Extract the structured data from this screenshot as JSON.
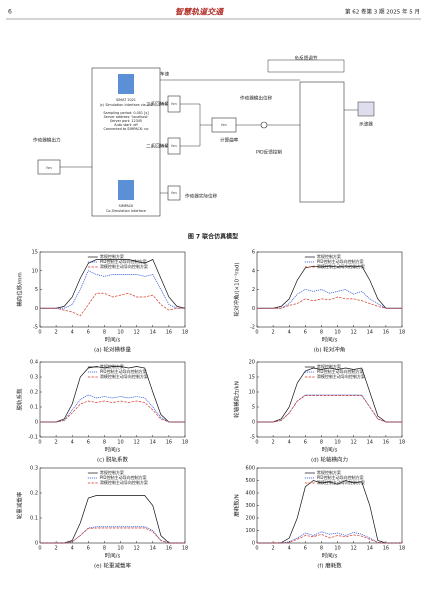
{
  "header": {
    "page_number": "6",
    "journal": "智慧轨道交通",
    "issue": "第 62 卷第 3 期 2025 年 5 月"
  },
  "diagram": {
    "block_title": "SIMAT 2021",
    "block_subtitle": "(c) Simulation Interface via IPC",
    "params": [
      "Sampling period: 0.001 [s]",
      "Server address: 'localhost'",
      "Server port: 12345",
      "Auto start: off",
      "Connected to SIMPACK: no"
    ],
    "block_footer": [
      "SIMPACK",
      "Co-Simulation Interface"
    ],
    "fcn_label": "fcn",
    "actuator_force": "作动器输出力",
    "speed": "车速",
    "yaw_angle": "二系回转角",
    "yaw_rate": "二系回转角速度",
    "actuator_disp": "作动器实际位移",
    "curvature": "计算曲率",
    "actuator_out_disp": "作动器输出位移",
    "pid": "PID反馈控制",
    "feedback": "负反馈调节",
    "scope": "示波器",
    "caption": "图 7 联合仿真模型"
  },
  "chart_data": [
    {
      "type": "line",
      "caption": "(a) 轮对横移量",
      "x_label": "时间/s",
      "y_label": "横向位移/mm",
      "legend": "top",
      "x": [
        0,
        1,
        2,
        3,
        4,
        5,
        6,
        7,
        8,
        9,
        10,
        11,
        12,
        13,
        14,
        15,
        16,
        17,
        18
      ],
      "xlim": [
        0,
        18
      ],
      "xticks": [
        0,
        2,
        4,
        6,
        8,
        10,
        12,
        14,
        16,
        18
      ],
      "ylim": [
        -5,
        15
      ],
      "yticks": [
        -5,
        0,
        5,
        10,
        15
      ],
      "series": [
        {
          "name": "常规控制方案",
          "color": "#111111",
          "values": [
            0,
            0,
            0,
            0.5,
            3,
            8,
            12,
            13,
            13,
            13,
            13,
            13,
            12.5,
            12,
            13,
            8,
            3,
            0.5,
            0
          ]
        },
        {
          "name": "PID控制主动导向控制方案",
          "color": "#2a4fd6",
          "values": [
            0,
            0,
            0,
            0,
            1,
            5,
            10,
            9,
            8.5,
            9,
            9,
            9,
            9,
            8.5,
            9,
            5,
            1,
            0,
            0
          ]
        },
        {
          "name": "滑模控制主动导向控制方案",
          "color": "#d63a2a",
          "values": [
            0,
            0,
            0,
            -0.5,
            -1,
            -2,
            1,
            4,
            4,
            3,
            3.5,
            4,
            3,
            3,
            3.5,
            1,
            -0.5,
            0,
            0
          ]
        }
      ]
    },
    {
      "type": "line",
      "caption": "(b) 轮对冲角",
      "x_label": "时间/s",
      "y_label": "轮对冲角/(×10⁻³rad)",
      "legend": "top",
      "x": [
        0,
        1,
        2,
        3,
        4,
        5,
        6,
        7,
        8,
        9,
        10,
        11,
        12,
        13,
        14,
        15,
        16,
        17,
        18
      ],
      "xlim": [
        0,
        18
      ],
      "xticks": [
        0,
        2,
        4,
        6,
        8,
        10,
        12,
        14,
        16,
        18
      ],
      "ylim": [
        -2,
        6
      ],
      "yticks": [
        -2,
        0,
        2,
        4,
        6
      ],
      "series": [
        {
          "name": "常规控制方案",
          "color": "#111111",
          "values": [
            0,
            0,
            0,
            0.2,
            1,
            3,
            4.3,
            4.5,
            4.4,
            4.5,
            4.4,
            4.5,
            4.4,
            4.5,
            3,
            1,
            0,
            0,
            0
          ]
        },
        {
          "name": "PID控制主动导向控制方案",
          "color": "#2a4fd6",
          "values": [
            0,
            0,
            0,
            0,
            0.5,
            1.5,
            2,
            1.8,
            2,
            1.6,
            1.8,
            2,
            1.5,
            1.8,
            1,
            0.5,
            0,
            0,
            0
          ]
        },
        {
          "name": "滑模控制主动导向控制方案",
          "color": "#d63a2a",
          "values": [
            0,
            0,
            0,
            0,
            0.3,
            0.5,
            1,
            0.8,
            1,
            0.9,
            1.2,
            1,
            1,
            0.8,
            0.5,
            0.2,
            0,
            0,
            0
          ]
        }
      ]
    },
    {
      "type": "line",
      "caption": "(c) 脱轨系数",
      "x_label": "时间/s",
      "y_label": "脱轨系数",
      "legend": "top",
      "x": [
        0,
        1,
        2,
        3,
        4,
        5,
        6,
        7,
        8,
        9,
        10,
        11,
        12,
        13,
        14,
        15,
        16,
        17,
        18
      ],
      "xlim": [
        0,
        18
      ],
      "xticks": [
        0,
        2,
        4,
        6,
        8,
        10,
        12,
        14,
        16,
        18
      ],
      "ylim": [
        -0.1,
        0.4
      ],
      "yticks": [
        -0.1,
        0,
        0.1,
        0.2,
        0.3,
        0.4
      ],
      "series": [
        {
          "name": "常规控制方案",
          "color": "#111111",
          "values": [
            0,
            0,
            0,
            0.02,
            0.12,
            0.3,
            0.36,
            0.37,
            0.36,
            0.37,
            0.37,
            0.36,
            0.37,
            0.36,
            0.2,
            0.05,
            0,
            0,
            0
          ]
        },
        {
          "name": "PID控制主动导向控制方案",
          "color": "#2a4fd6",
          "values": [
            0,
            0,
            0,
            0.01,
            0.08,
            0.15,
            0.18,
            0.16,
            0.17,
            0.16,
            0.17,
            0.16,
            0.17,
            0.16,
            0.1,
            0.03,
            0,
            0,
            0
          ]
        },
        {
          "name": "滑模控制主动导向控制方案",
          "color": "#d63a2a",
          "values": [
            0,
            0,
            0,
            0.01,
            0.06,
            0.12,
            0.14,
            0.13,
            0.14,
            0.13,
            0.14,
            0.13,
            0.14,
            0.13,
            0.08,
            0.02,
            0,
            0,
            0
          ]
        }
      ]
    },
    {
      "type": "line",
      "caption": "(d) 轮轴横向力",
      "x_label": "时间/s",
      "y_label": "轮轴横向力/kN",
      "legend": "top",
      "x": [
        0,
        1,
        2,
        3,
        4,
        5,
        6,
        7,
        8,
        9,
        10,
        11,
        12,
        13,
        14,
        15,
        16,
        17,
        18
      ],
      "xlim": [
        0,
        18
      ],
      "xticks": [
        0,
        2,
        4,
        6,
        8,
        10,
        12,
        14,
        16,
        18
      ],
      "ylim": [
        -5,
        20
      ],
      "yticks": [
        -5,
        0,
        5,
        10,
        15,
        20
      ],
      "series": [
        {
          "name": "常规控制方案",
          "color": "#111111",
          "values": [
            0,
            0,
            0,
            1,
            5,
            13,
            17,
            18,
            17.5,
            18,
            17.5,
            18,
            17.5,
            18,
            10,
            2,
            0,
            0,
            0
          ]
        },
        {
          "name": "PID控制主动导向控制方案",
          "color": "#2a4fd6",
          "values": [
            0,
            0,
            0,
            0.5,
            3,
            7,
            9,
            9,
            9,
            9,
            9,
            9,
            9,
            9,
            5,
            1,
            0,
            0,
            0
          ]
        },
        {
          "name": "滑模控制主动导向控制方案",
          "color": "#d63a2a",
          "values": [
            0,
            0,
            0,
            0.5,
            3,
            7,
            8.8,
            8.8,
            8.8,
            8.8,
            8.8,
            8.8,
            8.8,
            8.8,
            5,
            1,
            0,
            0,
            0
          ]
        }
      ]
    },
    {
      "type": "line",
      "caption": "(e) 轮重减载率",
      "x_label": "时间/s",
      "y_label": "轮重减载率",
      "legend": "top",
      "x": [
        0,
        1,
        2,
        3,
        4,
        5,
        6,
        7,
        8,
        9,
        10,
        11,
        12,
        13,
        14,
        15,
        16,
        17,
        18
      ],
      "xlim": [
        0,
        18
      ],
      "xticks": [
        0,
        2,
        4,
        6,
        8,
        10,
        12,
        14,
        16,
        18
      ],
      "ylim": [
        0,
        0.3
      ],
      "yticks": [
        0,
        0.1,
        0.2,
        0.3
      ],
      "series": [
        {
          "name": "常规控制方案",
          "color": "#111111",
          "values": [
            0,
            0,
            0,
            0,
            0.01,
            0.08,
            0.18,
            0.19,
            0.19,
            0.19,
            0.19,
            0.19,
            0.19,
            0.19,
            0.15,
            0.03,
            0,
            0,
            0
          ]
        },
        {
          "name": "PID控制主动导向控制方案",
          "color": "#2a4fd6",
          "values": [
            0,
            0,
            0,
            0,
            0.005,
            0.03,
            0.06,
            0.065,
            0.065,
            0.065,
            0.065,
            0.065,
            0.065,
            0.065,
            0.05,
            0.01,
            0,
            0,
            0
          ]
        },
        {
          "name": "滑模控制主动导向控制方案",
          "color": "#d63a2a",
          "values": [
            0,
            0,
            0,
            0,
            0.005,
            0.03,
            0.058,
            0.06,
            0.06,
            0.06,
            0.06,
            0.06,
            0.06,
            0.06,
            0.045,
            0.01,
            0,
            0,
            0
          ]
        }
      ]
    },
    {
      "type": "line",
      "caption": "(f) 磨耗数",
      "x_label": "时间/s",
      "y_label": "磨耗数/N",
      "legend": "top",
      "x": [
        0,
        1,
        2,
        3,
        4,
        5,
        6,
        7,
        8,
        9,
        10,
        11,
        12,
        13,
        14,
        15,
        16,
        17,
        18
      ],
      "xlim": [
        0,
        18
      ],
      "xticks": [
        0,
        2,
        4,
        6,
        8,
        10,
        12,
        14,
        16,
        18
      ],
      "ylim": [
        0,
        600
      ],
      "yticks": [
        0,
        100,
        200,
        300,
        400,
        500,
        600
      ],
      "series": [
        {
          "name": "常规控制方案",
          "color": "#111111",
          "values": [
            0,
            0,
            0,
            2,
            40,
            200,
            450,
            500,
            480,
            490,
            470,
            500,
            480,
            490,
            300,
            20,
            0,
            0,
            0
          ]
        },
        {
          "name": "PID控制主动导向控制方案",
          "color": "#2a4fd6",
          "values": [
            0,
            0,
            0,
            0,
            10,
            40,
            80,
            60,
            90,
            70,
            80,
            60,
            85,
            70,
            40,
            5,
            0,
            0,
            0
          ]
        },
        {
          "name": "滑模控制主动导向控制方案",
          "color": "#d63a2a",
          "values": [
            0,
            0,
            0,
            0,
            5,
            30,
            60,
            50,
            70,
            40,
            60,
            50,
            65,
            55,
            30,
            3,
            0,
            0,
            0
          ]
        }
      ]
    }
  ]
}
